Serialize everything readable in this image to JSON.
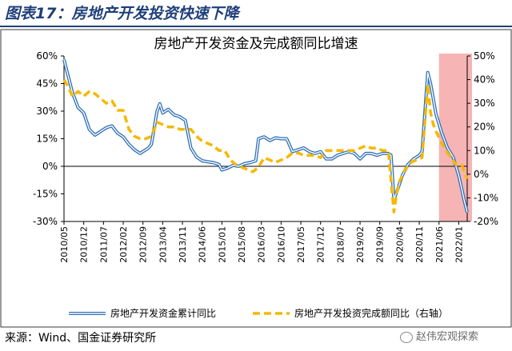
{
  "figure": {
    "title": "图表17：房地产开发投资快速下降",
    "source": "来源：Wind、国金证券研究所",
    "watermark": "赵伟宏观探索",
    "watermark_icon": "wechat-icon"
  },
  "chart_data": {
    "type": "line",
    "title": "房地产开发资金及完成额同比增速",
    "x_range": [
      "2010-05",
      "2022-04"
    ],
    "x_ticks": [
      "2010/05",
      "2010/12",
      "2011/07",
      "2012/02",
      "2012/09",
      "2013/04",
      "2013/11",
      "2014/06",
      "2015/01",
      "2015/08",
      "2016/03",
      "2016/10",
      "2017/05",
      "2017/12",
      "2018/07",
      "2019/02",
      "2019/09",
      "2020/04",
      "2020/11",
      "2021/06",
      "2022/01"
    ],
    "y_left": {
      "min": -30,
      "max": 60,
      "ticks": [
        "-30%",
        "-15%",
        "0%",
        "15%",
        "30%",
        "45%",
        "60%"
      ]
    },
    "y_right": {
      "min": -20,
      "max": 50,
      "ticks": [
        "-20%",
        "-10%",
        "0%",
        "10%",
        "20%",
        "30%",
        "40%",
        "50%"
      ]
    },
    "highlight": {
      "start": "2021-06",
      "end": "2022-04",
      "color": "#f4a7a7"
    },
    "series": [
      {
        "name": "房地产开发资金累计同比",
        "axis": "left",
        "style": "solid-double",
        "color": "#2e6fb7",
        "points": [
          [
            "2010-05",
            58
          ],
          [
            "2010-06",
            52
          ],
          [
            "2010-08",
            40
          ],
          [
            "2010-10",
            32
          ],
          [
            "2010-12",
            29
          ],
          [
            "2011-02",
            20
          ],
          [
            "2011-04",
            17
          ],
          [
            "2011-06",
            19
          ],
          [
            "2011-08",
            21
          ],
          [
            "2011-10",
            22
          ],
          [
            "2011-12",
            18
          ],
          [
            "2012-02",
            16
          ],
          [
            "2012-04",
            12
          ],
          [
            "2012-06",
            9
          ],
          [
            "2012-08",
            7
          ],
          [
            "2012-09",
            8
          ],
          [
            "2012-11",
            10
          ],
          [
            "2012-12",
            12
          ],
          [
            "2013-02",
            30
          ],
          [
            "2013-03",
            34
          ],
          [
            "2013-04",
            29
          ],
          [
            "2013-06",
            31
          ],
          [
            "2013-08",
            28
          ],
          [
            "2013-10",
            27
          ],
          [
            "2013-12",
            25
          ],
          [
            "2014-02",
            10
          ],
          [
            "2014-04",
            5
          ],
          [
            "2014-06",
            3
          ],
          [
            "2014-08",
            2.5
          ],
          [
            "2014-10",
            2
          ],
          [
            "2014-12",
            1
          ],
          [
            "2015-01",
            -2
          ],
          [
            "2015-03",
            -1
          ],
          [
            "2015-05",
            0.5
          ],
          [
            "2015-07",
            0
          ],
          [
            "2015-09",
            1.5
          ],
          [
            "2015-11",
            2
          ],
          [
            "2016-01",
            3
          ],
          [
            "2016-02",
            15
          ],
          [
            "2016-04",
            16
          ],
          [
            "2016-06",
            14
          ],
          [
            "2016-08",
            15.5
          ],
          [
            "2016-10",
            15
          ],
          [
            "2016-12",
            15
          ],
          [
            "2017-02",
            8
          ],
          [
            "2017-04",
            9
          ],
          [
            "2017-06",
            10
          ],
          [
            "2017-08",
            8
          ],
          [
            "2017-10",
            7
          ],
          [
            "2017-12",
            8
          ],
          [
            "2018-02",
            4
          ],
          [
            "2018-04",
            4
          ],
          [
            "2018-06",
            6
          ],
          [
            "2018-08",
            7
          ],
          [
            "2018-10",
            8
          ],
          [
            "2018-12",
            7
          ],
          [
            "2019-02",
            4
          ],
          [
            "2019-04",
            7
          ],
          [
            "2019-06",
            7
          ],
          [
            "2019-08",
            6
          ],
          [
            "2019-10",
            7
          ],
          [
            "2019-12",
            7
          ],
          [
            "2020-01",
            6
          ],
          [
            "2020-02",
            -18
          ],
          [
            "2020-03",
            -14
          ],
          [
            "2020-05",
            -5
          ],
          [
            "2020-07",
            1
          ],
          [
            "2020-09",
            4
          ],
          [
            "2020-11",
            6
          ],
          [
            "2020-12",
            8
          ],
          [
            "2021-02",
            51
          ],
          [
            "2021-03",
            45
          ],
          [
            "2021-05",
            28
          ],
          [
            "2021-07",
            18
          ],
          [
            "2021-09",
            10
          ],
          [
            "2021-11",
            5
          ],
          [
            "2022-01",
            -5
          ],
          [
            "2022-03",
            -19
          ],
          [
            "2022-04",
            -25
          ]
        ]
      },
      {
        "name": "房地产开发投资完成额同比（右轴）",
        "axis": "right",
        "style": "dashed",
        "color": "#f5b800",
        "points": [
          [
            "2010-05",
            40
          ],
          [
            "2010-06",
            38
          ],
          [
            "2010-08",
            33
          ],
          [
            "2010-10",
            35
          ],
          [
            "2010-12",
            33
          ],
          [
            "2011-02",
            35
          ],
          [
            "2011-04",
            34
          ],
          [
            "2011-06",
            32
          ],
          [
            "2011-08",
            30
          ],
          [
            "2011-10",
            31
          ],
          [
            "2011-12",
            27
          ],
          [
            "2012-02",
            27
          ],
          [
            "2012-04",
            19
          ],
          [
            "2012-06",
            16
          ],
          [
            "2012-08",
            15
          ],
          [
            "2012-10",
            15
          ],
          [
            "2012-12",
            16
          ],
          [
            "2013-02",
            22
          ],
          [
            "2013-04",
            21
          ],
          [
            "2013-06",
            20
          ],
          [
            "2013-08",
            20
          ],
          [
            "2013-10",
            19
          ],
          [
            "2013-12",
            19
          ],
          [
            "2014-02",
            19
          ],
          [
            "2014-04",
            16
          ],
          [
            "2014-06",
            14
          ],
          [
            "2014-08",
            13
          ],
          [
            "2014-10",
            12
          ],
          [
            "2014-12",
            10
          ],
          [
            "2015-02",
            10
          ],
          [
            "2015-04",
            6
          ],
          [
            "2015-06",
            4
          ],
          [
            "2015-08",
            3
          ],
          [
            "2015-10",
            2
          ],
          [
            "2015-12",
            1
          ],
          [
            "2016-02",
            3
          ],
          [
            "2016-04",
            7
          ],
          [
            "2016-06",
            6
          ],
          [
            "2016-08",
            5
          ],
          [
            "2016-10",
            6
          ],
          [
            "2016-12",
            7
          ],
          [
            "2017-02",
            9
          ],
          [
            "2017-04",
            9
          ],
          [
            "2017-06",
            8
          ],
          [
            "2017-08",
            8
          ],
          [
            "2017-10",
            8
          ],
          [
            "2017-12",
            7
          ],
          [
            "2018-02",
            10
          ],
          [
            "2018-04",
            10
          ],
          [
            "2018-06",
            10
          ],
          [
            "2018-08",
            10
          ],
          [
            "2018-10",
            10
          ],
          [
            "2018-12",
            10
          ],
          [
            "2019-02",
            11
          ],
          [
            "2019-04",
            12
          ],
          [
            "2019-06",
            11
          ],
          [
            "2019-08",
            11
          ],
          [
            "2019-10",
            10
          ],
          [
            "2019-12",
            10
          ],
          [
            "2020-02",
            -16
          ],
          [
            "2020-03",
            -8
          ],
          [
            "2020-04",
            -3
          ],
          [
            "2020-06",
            2
          ],
          [
            "2020-08",
            5
          ],
          [
            "2020-10",
            6
          ],
          [
            "2020-12",
            7
          ],
          [
            "2021-02",
            38
          ],
          [
            "2021-03",
            26
          ],
          [
            "2021-04",
            21
          ],
          [
            "2021-05",
            18
          ],
          [
            "2021-07",
            13
          ],
          [
            "2021-09",
            9
          ],
          [
            "2021-11",
            6
          ],
          [
            "2021-12",
            4
          ],
          [
            "2022-02",
            4
          ],
          [
            "2022-03",
            1
          ],
          [
            "2022-04",
            -2
          ]
        ]
      }
    ],
    "legend": [
      "房地产开发资金累计同比",
      "房地产开发投资完成额同比（右轴）"
    ],
    "legend_placement": "bottom",
    "grid": false
  }
}
